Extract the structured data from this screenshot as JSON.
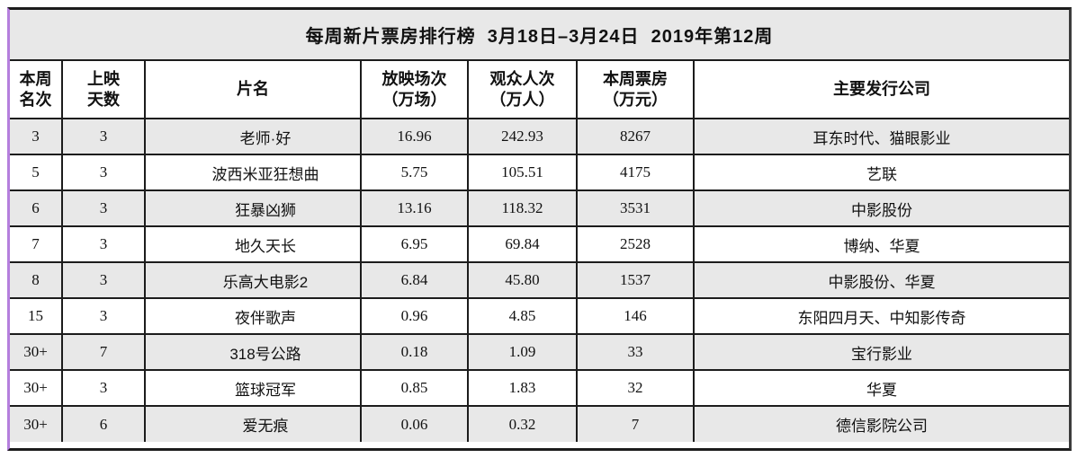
{
  "meta": {
    "colors": {
      "row_shade": "#e8e8e8",
      "border": "#1c1c1c",
      "left_accent_purple": "#b57fdd",
      "background": "#ffffff"
    }
  },
  "table": {
    "title": "每周新片票房排行榜  3月18日–3月24日  2019年第12周",
    "columns": [
      {
        "label": "本周\n名次"
      },
      {
        "label": "上映\n天数"
      },
      {
        "label": "片名"
      },
      {
        "label": "放映场次\n（万场）"
      },
      {
        "label": "观众人次\n（万人）"
      },
      {
        "label": "本周票房\n（万元）"
      },
      {
        "label": "主要发行公司"
      }
    ],
    "rows": [
      {
        "cells": [
          "3",
          "3",
          "老师·好",
          "16.96",
          "242.93",
          "8267",
          "耳东时代、猫眼影业"
        ]
      },
      {
        "cells": [
          "5",
          "3",
          "波西米亚狂想曲",
          "5.75",
          "105.51",
          "4175",
          "艺联"
        ]
      },
      {
        "cells": [
          "6",
          "3",
          "狂暴凶狮",
          "13.16",
          "118.32",
          "3531",
          "中影股份"
        ]
      },
      {
        "cells": [
          "7",
          "3",
          "地久天长",
          "6.95",
          "69.84",
          "2528",
          "博纳、华夏"
        ]
      },
      {
        "cells": [
          "8",
          "3",
          "乐高大电影2",
          "6.84",
          "45.80",
          "1537",
          "中影股份、华夏"
        ]
      },
      {
        "cells": [
          "15",
          "3",
          "夜伴歌声",
          "0.96",
          "4.85",
          "146",
          "东阳四月天、中知影传奇"
        ]
      },
      {
        "cells": [
          "30+",
          "7",
          "318号公路",
          "0.18",
          "1.09",
          "33",
          "宝行影业"
        ]
      },
      {
        "cells": [
          "30+",
          "3",
          "篮球冠军",
          "0.85",
          "1.83",
          "32",
          "华夏"
        ]
      },
      {
        "cells": [
          "30+",
          "6",
          "爱无痕",
          "0.06",
          "0.32",
          "7",
          "德信影院公司"
        ]
      }
    ]
  }
}
